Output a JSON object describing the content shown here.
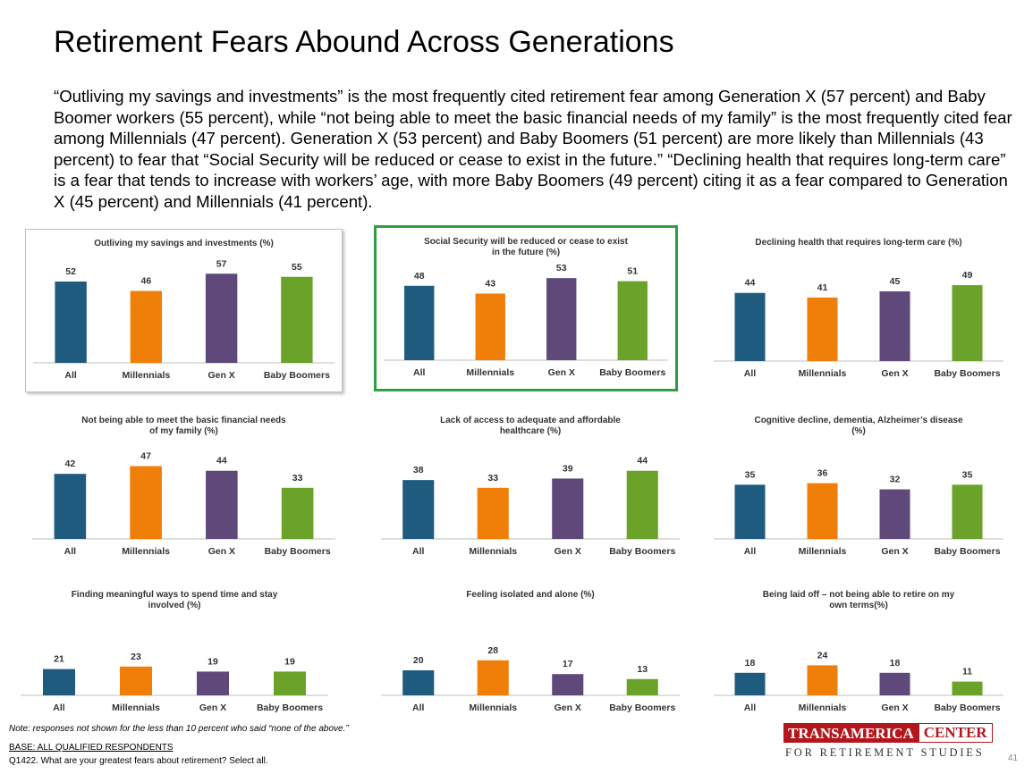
{
  "title": "Retirement Fears Abound Across Generations",
  "summary": "“Outliving my savings and investments” is the most frequently cited retirement fear among Generation X (57 percent) and Baby Boomer workers (55 percent), while “not being able to meet the basic financial needs of my family” is the most frequently cited fear among Millennials (47 percent). Generation X (53 percent) and Baby Boomers (51 percent) are more likely than Millennials (43 percent) to fear that “Social Security will be reduced or cease to exist in the future.” “Declining health that requires long-term care” is a fear that tends to increase with workers’ age, with more Baby Boomers (49 percent) citing it as a fear compared to Generation X (45 percent) and Millennials (41 percent).",
  "colors": {
    "all": "#1f5a7f",
    "millennials": "#f07f0a",
    "genx": "#5f497a",
    "boomers": "#6aa22a",
    "highlight": "#2ea043"
  },
  "chart_data": [
    {
      "type": "bar",
      "title": [
        "Outliving my savings and investments (%)"
      ],
      "categories": [
        "All",
        "Millennials",
        "Gen X",
        "Baby Boomers"
      ],
      "values": [
        52,
        46,
        57,
        55
      ],
      "ylim": [
        0,
        60
      ]
    },
    {
      "type": "bar",
      "title": [
        "Social Security will be reduced or cease to exist",
        "in the future (%)"
      ],
      "categories": [
        "All",
        "Millennials",
        "Gen X",
        "Baby Boomers"
      ],
      "values": [
        48,
        43,
        53,
        51
      ],
      "ylim": [
        0,
        60
      ]
    },
    {
      "type": "bar",
      "title": [
        "Declining health that requires long-term care (%)"
      ],
      "categories": [
        "All",
        "Millennials",
        "Gen X",
        "Baby Boomers"
      ],
      "values": [
        44,
        41,
        45,
        49
      ],
      "ylim": [
        0,
        60
      ]
    },
    {
      "type": "bar",
      "title": [
        "Not being able to meet the basic financial needs",
        "of my family (%)"
      ],
      "categories": [
        "All",
        "Millennials",
        "Gen X",
        "Baby Boomers"
      ],
      "values": [
        42,
        47,
        44,
        33
      ],
      "ylim": [
        0,
        60
      ]
    },
    {
      "type": "bar",
      "title": [
        "Lack of access to adequate and affordable",
        "healthcare (%)"
      ],
      "categories": [
        "All",
        "Millennials",
        "Gen X",
        "Baby Boomers"
      ],
      "values": [
        38,
        33,
        39,
        44
      ],
      "ylim": [
        0,
        60
      ]
    },
    {
      "type": "bar",
      "title": [
        "Cognitive decline, dementia, Alzheimer’s disease",
        "(%)"
      ],
      "categories": [
        "All",
        "Millennials",
        "Gen X",
        "Baby Boomers"
      ],
      "values": [
        35,
        36,
        32,
        35
      ],
      "ylim": [
        0,
        60
      ]
    },
    {
      "type": "bar",
      "title": [
        "Finding meaningful ways to spend time and stay",
        "involved (%)"
      ],
      "categories": [
        "All",
        "Millennials",
        "Gen X",
        "Baby Boomers"
      ],
      "values": [
        21,
        23,
        19,
        19
      ],
      "ylim": [
        0,
        60
      ]
    },
    {
      "type": "bar",
      "title": [
        "Feeling isolated and alone (%)"
      ],
      "categories": [
        "All",
        "Millennials",
        "Gen X",
        "Baby Boomers"
      ],
      "values": [
        20,
        28,
        17,
        13
      ],
      "ylim": [
        0,
        60
      ]
    },
    {
      "type": "bar",
      "title": [
        "Being laid off – not being able to retire on my",
        "own terms(%)"
      ],
      "categories": [
        "All",
        "Millennials",
        "Gen X",
        "Baby Boomers"
      ],
      "values": [
        18,
        24,
        18,
        11
      ],
      "ylim": [
        0,
        60
      ]
    }
  ],
  "note": "Note: responses not shown for the less than 10 percent who said “none of the above.”",
  "base": "BASE:  ALL QUALIFIED RESPONDENTS",
  "question": "Q1422. What are your greatest fears about retirement? Select all.",
  "logo": {
    "left": "TRANSAMERICA",
    "right": "CENTER",
    "sub": "FOR RETIREMENT STUDIES"
  },
  "page_number": "41"
}
